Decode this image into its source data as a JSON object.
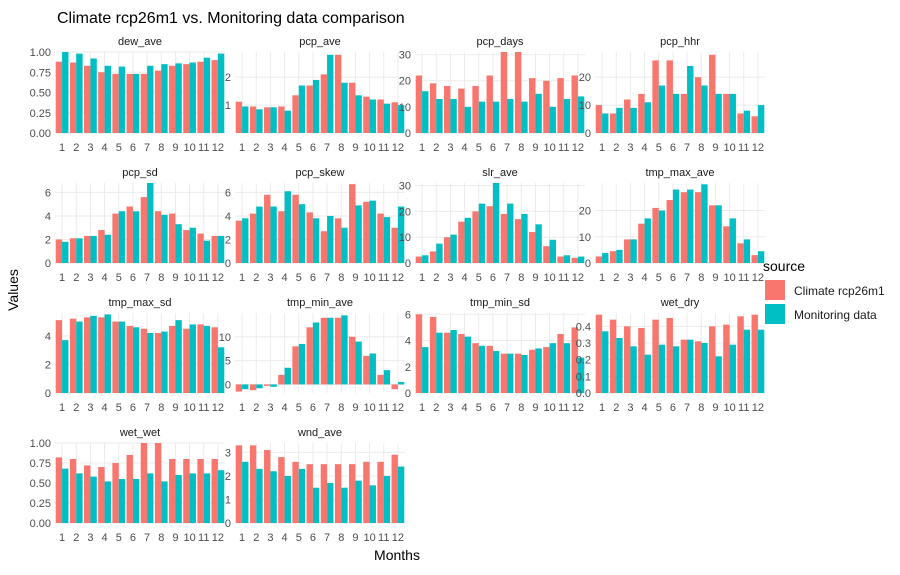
{
  "chart_data": {
    "type": "bar",
    "title": "Climate rcp26m1 vs. Monitoring data comparison",
    "xlabel": "Months",
    "ylabel": "Values",
    "categories": [
      "1",
      "2",
      "3",
      "4",
      "5",
      "6",
      "7",
      "8",
      "9",
      "10",
      "11",
      "12"
    ],
    "legend": {
      "title": "source",
      "placement": "right",
      "entries": [
        {
          "name": "Climate rcp26m1",
          "color": "#F8766D"
        },
        {
          "name": "Monitoring data",
          "color": "#00BFC4"
        }
      ]
    },
    "grid": true,
    "panels": [
      {
        "name": "dew_ave",
        "ylim": [
          0,
          1.0
        ],
        "yticks": [
          "0.00",
          "0.25",
          "0.50",
          "0.75",
          "1.00"
        ],
        "tick_values": [
          0,
          0.25,
          0.5,
          0.75,
          1.0
        ],
        "series": [
          {
            "name": "Climate rcp26m1",
            "values": [
              0.88,
              0.87,
              0.83,
              0.75,
              0.73,
              0.73,
              0.73,
              0.77,
              0.83,
              0.85,
              0.88,
              0.9
            ]
          },
          {
            "name": "Monitoring data",
            "values": [
              1.0,
              0.98,
              0.92,
              0.83,
              0.82,
              0.73,
              0.83,
              0.85,
              0.86,
              0.87,
              0.93,
              0.98
            ]
          }
        ]
      },
      {
        "name": "pcp_ave",
        "ylim": [
          0,
          2.9
        ],
        "yticks": [
          "1",
          "2"
        ],
        "tick_values": [
          1,
          2
        ],
        "series": [
          {
            "name": "Climate rcp26m1",
            "values": [
              1.12,
              0.95,
              0.92,
              0.95,
              1.35,
              1.7,
              2.1,
              2.8,
              1.8,
              1.3,
              1.2,
              1.1
            ]
          },
          {
            "name": "Monitoring data",
            "values": [
              0.95,
              0.85,
              0.92,
              0.8,
              1.7,
              1.9,
              2.8,
              1.8,
              1.35,
              1.2,
              1.05,
              1.0
            ]
          }
        ]
      },
      {
        "name": "pcp_days",
        "ylim": [
          0,
          31
        ],
        "yticks": [
          "0",
          "10",
          "20",
          "30"
        ],
        "tick_values": [
          0,
          10,
          20,
          30
        ],
        "series": [
          {
            "name": "Climate rcp26m1",
            "values": [
              22,
              19,
              18,
              17,
              18,
              22,
              31,
              31,
              21,
              20,
              21,
              22
            ]
          },
          {
            "name": "Monitoring data",
            "values": [
              16,
              13,
              13,
              10,
              12,
              12,
              13,
              12,
              15,
              10,
              13,
              14
            ]
          }
        ]
      },
      {
        "name": "pcp_hhr",
        "ylim": [
          0,
          29
        ],
        "yticks": [
          "0",
          "10",
          "20"
        ],
        "tick_values": [
          0,
          10,
          20
        ],
        "series": [
          {
            "name": "Climate rcp26m1",
            "values": [
              10,
              7,
              12,
              14,
              26,
              26,
              14,
              20,
              28,
              14,
              7,
              6
            ]
          },
          {
            "name": "Monitoring data",
            "values": [
              7,
              9,
              9,
              11,
              17,
              14,
              24,
              17,
              14,
              14,
              8,
              10
            ]
          }
        ]
      },
      {
        "name": "pcp_sd",
        "ylim": [
          0,
          6.8
        ],
        "yticks": [
          "0",
          "2",
          "4",
          "6"
        ],
        "tick_values": [
          0,
          2,
          4,
          6
        ],
        "series": [
          {
            "name": "Climate rcp26m1",
            "values": [
              2.0,
              2.1,
              2.3,
              2.8,
              4.2,
              4.8,
              5.6,
              4.4,
              4.2,
              2.8,
              2.5,
              2.3
            ]
          },
          {
            "name": "Monitoring data",
            "values": [
              1.8,
              2.1,
              2.3,
              2.4,
              4.4,
              4.4,
              6.8,
              4.1,
              3.3,
              3.0,
              1.9,
              2.3
            ]
          }
        ]
      },
      {
        "name": "pcp_skew",
        "ylim": [
          0,
          6.8
        ],
        "yticks": [
          "0",
          "2",
          "4",
          "6"
        ],
        "tick_values": [
          0,
          2,
          4,
          6
        ],
        "series": [
          {
            "name": "Climate rcp26m1",
            "values": [
              3.6,
              4.2,
              5.8,
              4.4,
              5.8,
              4.3,
              2.7,
              3.8,
              6.7,
              5.2,
              4.2,
              3.0
            ]
          },
          {
            "name": "Monitoring data",
            "values": [
              3.8,
              4.8,
              4.8,
              6.1,
              5.0,
              3.8,
              4.0,
              3.0,
              4.9,
              5.3,
              3.9,
              4.8
            ]
          }
        ]
      },
      {
        "name": "slr_ave",
        "ylim": [
          0,
          31
        ],
        "yticks": [
          "0",
          "10",
          "20",
          "30"
        ],
        "tick_values": [
          0,
          10,
          20,
          30
        ],
        "series": [
          {
            "name": "Climate rcp26m1",
            "values": [
              2.5,
              4.5,
              10,
              16,
              20,
              22,
              19,
              17,
              12,
              6.5,
              2.5,
              2
            ]
          },
          {
            "name": "Monitoring data",
            "values": [
              3,
              7.5,
              11,
              17.5,
              23,
              31,
              23,
              19,
              15,
              9,
              3,
              2.5
            ]
          }
        ]
      },
      {
        "name": "tmp_max_ave",
        "ylim": [
          0,
          30.5
        ],
        "yticks": [
          "0",
          "10",
          "20"
        ],
        "tick_values": [
          0,
          10,
          20
        ],
        "series": [
          {
            "name": "Climate rcp26m1",
            "values": [
              2.5,
              4.5,
              9,
              15,
              21,
              24,
              27,
              27,
              22,
              14,
              7.5,
              3
            ]
          },
          {
            "name": "Monitoring data",
            "values": [
              3.8,
              5,
              9,
              17,
              20,
              28,
              28,
              30,
              22,
              17,
              9,
              4.5
            ]
          }
        ]
      },
      {
        "name": "tmp_max_sd",
        "ylim": [
          0,
          5.6
        ],
        "yticks": [
          "0",
          "2",
          "4"
        ],
        "tick_values": [
          0,
          2,
          4
        ],
        "series": [
          {
            "name": "Climate rcp26m1",
            "values": [
              5.1,
              5.2,
              5.3,
              5.3,
              5.0,
              4.7,
              4.5,
              4.2,
              4.7,
              4.5,
              4.8,
              4.6
            ]
          },
          {
            "name": "Monitoring data",
            "values": [
              3.7,
              5.0,
              5.4,
              5.5,
              5.0,
              4.6,
              4.2,
              4.3,
              5.1,
              4.8,
              4.7,
              3.2
            ]
          }
        ]
      },
      {
        "name": "tmp_min_ave",
        "ylim": [
          -1.8,
          15
        ],
        "yticks": [
          "0",
          "5",
          "10"
        ],
        "tick_values": [
          0,
          5,
          10
        ],
        "series": [
          {
            "name": "Climate rcp26m1",
            "values": [
              -1.5,
              -1.2,
              -0.3,
              2,
              8,
              12,
              14,
              14,
              10,
              6,
              2,
              -1
            ]
          },
          {
            "name": "Monitoring data",
            "values": [
              -1,
              -0.8,
              -0.5,
              3.5,
              8.5,
              13,
              14,
              14.5,
              9,
              6.5,
              3,
              0.5
            ]
          }
        ]
      },
      {
        "name": "tmp_min_sd",
        "ylim": [
          0,
          6.1
        ],
        "yticks": [
          "0",
          "2",
          "4",
          "6"
        ],
        "tick_values": [
          0,
          2,
          4,
          6
        ],
        "series": [
          {
            "name": "Climate rcp26m1",
            "values": [
              6,
              5.8,
              4.6,
              4.5,
              3.8,
              3.6,
              3.0,
              3.0,
              3.3,
              3.5,
              4.5,
              5.0
            ]
          },
          {
            "name": "Monitoring data",
            "values": [
              3.5,
              4.6,
              4.8,
              4.3,
              3.6,
              3.2,
              3.0,
              2.9,
              3.4,
              3.8,
              3.8,
              2.7
            ]
          }
        ]
      },
      {
        "name": "wet_dry",
        "ylim": [
          0,
          0.48
        ],
        "yticks": [
          "0.0",
          "0.1",
          "0.2",
          "0.3",
          "0.4"
        ],
        "tick_values": [
          0,
          0.1,
          0.2,
          0.3,
          0.4
        ],
        "series": [
          {
            "name": "Climate rcp26m1",
            "values": [
              0.47,
              0.44,
              0.4,
              0.39,
              0.44,
              0.45,
              0.32,
              0.31,
              0.4,
              0.41,
              0.46,
              0.47
            ]
          },
          {
            "name": "Monitoring data",
            "values": [
              0.37,
              0.33,
              0.28,
              0.23,
              0.29,
              0.28,
              0.32,
              0.3,
              0.22,
              0.29,
              0.38,
              0.38
            ]
          }
        ]
      },
      {
        "name": "wet_wet",
        "ylim": [
          0,
          1.0
        ],
        "yticks": [
          "0.00",
          "0.25",
          "0.50",
          "0.75",
          "1.00"
        ],
        "tick_values": [
          0,
          0.25,
          0.5,
          0.75,
          1.0
        ],
        "series": [
          {
            "name": "Climate rcp26m1",
            "values": [
              0.82,
              0.8,
              0.72,
              0.7,
              0.75,
              0.85,
              1.0,
              1.0,
              0.8,
              0.8,
              0.8,
              0.8
            ]
          },
          {
            "name": "Monitoring data",
            "values": [
              0.68,
              0.62,
              0.58,
              0.52,
              0.55,
              0.55,
              0.62,
              0.52,
              0.6,
              0.62,
              0.62,
              0.66
            ]
          }
        ]
      },
      {
        "name": "wnd_ave",
        "ylim": [
          0,
          3.4
        ],
        "yticks": [
          "0",
          "1",
          "2",
          "3"
        ],
        "tick_values": [
          0,
          1,
          2,
          3
        ],
        "series": [
          {
            "name": "Climate rcp26m1",
            "values": [
              3.3,
              3.3,
              3.1,
              2.8,
              2.6,
              2.5,
              2.5,
              2.5,
              2.5,
              2.6,
              2.6,
              2.9
            ]
          },
          {
            "name": "Monitoring data",
            "values": [
              2.6,
              2.3,
              2.2,
              2.0,
              2.3,
              1.5,
              1.7,
              1.5,
              1.8,
              1.6,
              2.0,
              2.4
            ]
          }
        ]
      }
    ]
  }
}
